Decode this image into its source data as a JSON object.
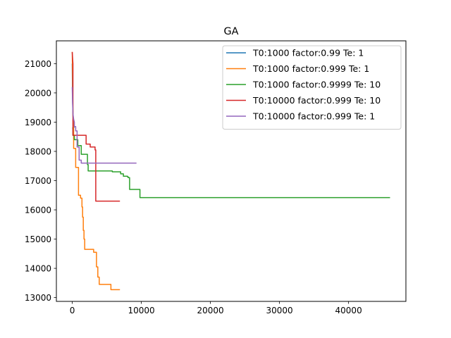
{
  "chart_data": {
    "type": "line",
    "title": "GA",
    "xlabel": "",
    "ylabel": "",
    "xlim": [
      -2300,
      48300
    ],
    "ylim": [
      12870,
      21780
    ],
    "xticks": [
      0,
      10000,
      20000,
      30000,
      40000
    ],
    "yticks": [
      13000,
      14000,
      15000,
      16000,
      17000,
      18000,
      19000,
      20000,
      21000
    ],
    "grid": false,
    "legend_position": "top-right",
    "series": [
      {
        "name": "T0:1000 factor:0.99 Te: 1",
        "color": "#1f77b4",
        "x": [
          0,
          50,
          100,
          150,
          250
        ],
        "y": [
          21000,
          19800,
          19300,
          19000,
          18800
        ]
      },
      {
        "name": "T0:1000 factor:0.999 Te: 1",
        "color": "#ff7f0e",
        "x": [
          0,
          50,
          100,
          200,
          200,
          500,
          500,
          900,
          900,
          1200,
          1200,
          1400,
          1400,
          1500,
          1500,
          1600,
          1600,
          1700,
          1700,
          1800,
          1800,
          2000,
          2000,
          3100,
          3100,
          3500,
          3500,
          3700,
          3700,
          3900,
          3900,
          5600,
          5600,
          6900
        ],
        "y": [
          21400,
          20500,
          19300,
          18700,
          18100,
          18100,
          17450,
          17450,
          16500,
          16500,
          16400,
          16400,
          16100,
          16100,
          15750,
          15750,
          15300,
          15300,
          15000,
          15000,
          14650,
          14650,
          14650,
          14650,
          14550,
          14550,
          14050,
          14050,
          13700,
          13700,
          13450,
          13450,
          13270,
          13270
        ]
      },
      {
        "name": "T0:1000 factor:0.9999 Te: 10",
        "color": "#2ca02c",
        "x": [
          0,
          100,
          100,
          300,
          300,
          800,
          800,
          1300,
          1300,
          2200,
          2200,
          2300,
          2300,
          5800,
          5800,
          7000,
          7000,
          7400,
          7400,
          8000,
          8000,
          8100,
          8100,
          8300,
          8300,
          9300,
          9300,
          9800,
          9800,
          46000
        ],
        "y": [
          18800,
          18800,
          18550,
          18550,
          18400,
          18400,
          18200,
          18200,
          17900,
          17900,
          17550,
          17550,
          17330,
          17330,
          17300,
          17300,
          17230,
          17230,
          17150,
          17150,
          17130,
          17130,
          17100,
          17100,
          16700,
          16700,
          16700,
          16700,
          16420,
          16420
        ]
      },
      {
        "name": "T0:10000 factor:0.999 Te: 10",
        "color": "#d62728",
        "x": [
          0,
          100,
          100,
          200,
          200,
          1100,
          1100,
          2000,
          2000,
          2600,
          2600,
          3300,
          3300,
          3400,
          3400,
          6900
        ],
        "y": [
          21400,
          21000,
          18550,
          18550,
          18550,
          18550,
          18550,
          18550,
          18250,
          18250,
          18150,
          18150,
          18050,
          18050,
          16300,
          16300
        ]
      },
      {
        "name": "T0:10000 factor:0.999 Te: 1",
        "color": "#9467bd",
        "x": [
          0,
          50,
          100,
          200,
          300,
          300,
          500,
          500,
          700,
          700,
          1000,
          1000,
          1300,
          1300,
          9300
        ],
        "y": [
          20200,
          19650,
          19300,
          19100,
          19000,
          18850,
          18850,
          18700,
          18700,
          18150,
          18150,
          17700,
          17700,
          17600,
          17600
        ]
      }
    ]
  }
}
